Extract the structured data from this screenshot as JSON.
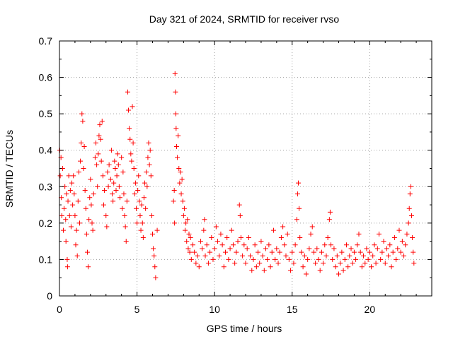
{
  "chart_data": {
    "type": "scatter",
    "title": "Day 321 of 2024, SRMTID for receiver rvso",
    "xlabel": "GPS time / hours",
    "ylabel": "SRMTID / TECUs",
    "xlim": [
      0,
      24
    ],
    "ylim": [
      0,
      0.7
    ],
    "grid": true,
    "xticks": [
      0,
      5,
      10,
      15,
      20
    ],
    "xtick_labels": [
      "0",
      "5",
      "10",
      "15",
      "20"
    ],
    "yticks": [
      0,
      0.1,
      0.2,
      0.3,
      0.4,
      0.5,
      0.6,
      0.7
    ],
    "ytick_labels": [
      "0",
      "0.1",
      "0.2",
      "0.3",
      "0.4",
      "0.5",
      "0.6",
      "0.7"
    ],
    "marker": "plus",
    "series": [
      {
        "name": "SRMTID",
        "color": "#ff0000",
        "points": [
          [
            0.02,
            0.4
          ],
          [
            0.05,
            0.33
          ],
          [
            0.1,
            0.38
          ],
          [
            0.12,
            0.27
          ],
          [
            0.15,
            0.22
          ],
          [
            0.2,
            0.35
          ],
          [
            0.25,
            0.18
          ],
          [
            0.3,
            0.24
          ],
          [
            0.35,
            0.3
          ],
          [
            0.4,
            0.21
          ],
          [
            0.42,
            0.15
          ],
          [
            0.45,
            0.28
          ],
          [
            0.5,
            0.1
          ],
          [
            0.52,
            0.08
          ],
          [
            0.55,
            0.26
          ],
          [
            0.6,
            0.33
          ],
          [
            0.65,
            0.22
          ],
          [
            0.7,
            0.29
          ],
          [
            0.75,
            0.19
          ],
          [
            0.8,
            0.31
          ],
          [
            0.85,
            0.25
          ],
          [
            0.9,
            0.33
          ],
          [
            0.95,
            0.28
          ],
          [
            1.0,
            0.22
          ],
          [
            1.05,
            0.14
          ],
          [
            1.1,
            0.18
          ],
          [
            1.15,
            0.11
          ],
          [
            1.2,
            0.26
          ],
          [
            1.25,
            0.34
          ],
          [
            1.3,
            0.2
          ],
          [
            1.35,
            0.37
          ],
          [
            1.4,
            0.42
          ],
          [
            1.45,
            0.5
          ],
          [
            1.5,
            0.48
          ],
          [
            1.55,
            0.35
          ],
          [
            1.6,
            0.41
          ],
          [
            1.65,
            0.29
          ],
          [
            1.7,
            0.24
          ],
          [
            1.75,
            0.17
          ],
          [
            1.8,
            0.12
          ],
          [
            1.85,
            0.08
          ],
          [
            1.9,
            0.21
          ],
          [
            1.95,
            0.27
          ],
          [
            2.0,
            0.32
          ],
          [
            2.05,
            0.25
          ],
          [
            2.1,
            0.2
          ],
          [
            2.15,
            0.18
          ],
          [
            2.2,
            0.28
          ],
          [
            2.3,
            0.38
          ],
          [
            2.35,
            0.42
          ],
          [
            2.4,
            0.36
          ],
          [
            2.45,
            0.3
          ],
          [
            2.5,
            0.39
          ],
          [
            2.55,
            0.44
          ],
          [
            2.6,
            0.47
          ],
          [
            2.65,
            0.43
          ],
          [
            2.7,
            0.37
          ],
          [
            2.75,
            0.48
          ],
          [
            2.8,
            0.33
          ],
          [
            2.85,
            0.25
          ],
          [
            2.9,
            0.29
          ],
          [
            3.0,
            0.22
          ],
          [
            3.05,
            0.19
          ],
          [
            3.1,
            0.34
          ],
          [
            3.15,
            0.3
          ],
          [
            3.2,
            0.36
          ],
          [
            3.3,
            0.32
          ],
          [
            3.35,
            0.4
          ],
          [
            3.4,
            0.28
          ],
          [
            3.45,
            0.26
          ],
          [
            3.5,
            0.31
          ],
          [
            3.55,
            0.37
          ],
          [
            3.6,
            0.35
          ],
          [
            3.65,
            0.29
          ],
          [
            3.7,
            0.33
          ],
          [
            3.75,
            0.39
          ],
          [
            3.8,
            0.36
          ],
          [
            3.85,
            0.3
          ],
          [
            3.9,
            0.27
          ],
          [
            4.0,
            0.38
          ],
          [
            4.05,
            0.24
          ],
          [
            4.1,
            0.34
          ],
          [
            4.15,
            0.28
          ],
          [
            4.2,
            0.22
          ],
          [
            4.25,
            0.19
          ],
          [
            4.3,
            0.15
          ],
          [
            4.35,
            0.26
          ],
          [
            4.4,
            0.56
          ],
          [
            4.45,
            0.51
          ],
          [
            4.5,
            0.46
          ],
          [
            4.55,
            0.43
          ],
          [
            4.6,
            0.39
          ],
          [
            4.65,
            0.37
          ],
          [
            4.7,
            0.52
          ],
          [
            4.75,
            0.42
          ],
          [
            4.8,
            0.35
          ],
          [
            4.85,
            0.28
          ],
          [
            4.9,
            0.31
          ],
          [
            4.95,
            0.24
          ],
          [
            5.0,
            0.2
          ],
          [
            5.05,
            0.29
          ],
          [
            5.1,
            0.33
          ],
          [
            5.15,
            0.26
          ],
          [
            5.2,
            0.22
          ],
          [
            5.25,
            0.18
          ],
          [
            5.3,
            0.25
          ],
          [
            5.35,
            0.2
          ],
          [
            5.4,
            0.16
          ],
          [
            5.45,
            0.27
          ],
          [
            5.5,
            0.31
          ],
          [
            5.55,
            0.24
          ],
          [
            5.6,
            0.34
          ],
          [
            5.65,
            0.3
          ],
          [
            5.7,
            0.38
          ],
          [
            5.75,
            0.42
          ],
          [
            5.8,
            0.36
          ],
          [
            5.85,
            0.4
          ],
          [
            5.9,
            0.33
          ],
          [
            5.95,
            0.22
          ],
          [
            6.0,
            0.17
          ],
          [
            6.05,
            0.13
          ],
          [
            6.1,
            0.11
          ],
          [
            6.15,
            0.08
          ],
          [
            6.2,
            0.05
          ],
          [
            6.3,
            0.18
          ],
          [
            7.35,
            0.26
          ],
          [
            7.4,
            0.29
          ],
          [
            7.42,
            0.2
          ],
          [
            7.45,
            0.61
          ],
          [
            7.48,
            0.56
          ],
          [
            7.5,
            0.5
          ],
          [
            7.52,
            0.46
          ],
          [
            7.55,
            0.41
          ],
          [
            7.6,
            0.38
          ],
          [
            7.65,
            0.44
          ],
          [
            7.7,
            0.35
          ],
          [
            7.75,
            0.31
          ],
          [
            7.8,
            0.34
          ],
          [
            7.85,
            0.28
          ],
          [
            7.9,
            0.32
          ],
          [
            7.95,
            0.26
          ],
          [
            8.0,
            0.22
          ],
          [
            8.05,
            0.24
          ],
          [
            8.1,
            0.18
          ],
          [
            8.15,
            0.2
          ],
          [
            8.2,
            0.15
          ],
          [
            8.25,
            0.21
          ],
          [
            8.3,
            0.13
          ],
          [
            8.35,
            0.17
          ],
          [
            8.4,
            0.12
          ],
          [
            8.45,
            0.16
          ],
          [
            8.5,
            0.1
          ],
          [
            8.6,
            0.14
          ],
          [
            8.7,
            0.12
          ],
          [
            8.8,
            0.09
          ],
          [
            8.9,
            0.11
          ],
          [
            9.0,
            0.08
          ],
          [
            9.1,
            0.15
          ],
          [
            9.2,
            0.13
          ],
          [
            9.3,
            0.18
          ],
          [
            9.35,
            0.21
          ],
          [
            9.4,
            0.11
          ],
          [
            9.5,
            0.14
          ],
          [
            9.6,
            0.09
          ],
          [
            9.7,
            0.12
          ],
          [
            9.8,
            0.16
          ],
          [
            9.9,
            0.1
          ],
          [
            10.0,
            0.13
          ],
          [
            10.1,
            0.19
          ],
          [
            10.2,
            0.15
          ],
          [
            10.3,
            0.11
          ],
          [
            10.4,
            0.17
          ],
          [
            10.5,
            0.14
          ],
          [
            10.6,
            0.08
          ],
          [
            10.7,
            0.12
          ],
          [
            10.8,
            0.16
          ],
          [
            10.9,
            0.1
          ],
          [
            11.0,
            0.13
          ],
          [
            11.1,
            0.18
          ],
          [
            11.2,
            0.14
          ],
          [
            11.3,
            0.09
          ],
          [
            11.4,
            0.12
          ],
          [
            11.5,
            0.15
          ],
          [
            11.6,
            0.25
          ],
          [
            11.65,
            0.22
          ],
          [
            11.7,
            0.16
          ],
          [
            11.8,
            0.11
          ],
          [
            11.9,
            0.14
          ],
          [
            12.0,
            0.09
          ],
          [
            12.1,
            0.13
          ],
          [
            12.2,
            0.16
          ],
          [
            12.3,
            0.11
          ],
          [
            12.4,
            0.07
          ],
          [
            12.5,
            0.1
          ],
          [
            12.6,
            0.14
          ],
          [
            12.7,
            0.08
          ],
          [
            12.8,
            0.12
          ],
          [
            12.9,
            0.09
          ],
          [
            13.0,
            0.15
          ],
          [
            13.1,
            0.11
          ],
          [
            13.2,
            0.07
          ],
          [
            13.3,
            0.13
          ],
          [
            13.4,
            0.1
          ],
          [
            13.5,
            0.14
          ],
          [
            13.6,
            0.08
          ],
          [
            13.7,
            0.12
          ],
          [
            13.8,
            0.18
          ],
          [
            13.9,
            0.1
          ],
          [
            14.0,
            0.13
          ],
          [
            14.1,
            0.09
          ],
          [
            14.2,
            0.12
          ],
          [
            14.3,
            0.16
          ],
          [
            14.4,
            0.19
          ],
          [
            14.5,
            0.14
          ],
          [
            14.6,
            0.11
          ],
          [
            14.7,
            0.17
          ],
          [
            14.8,
            0.1
          ],
          [
            14.9,
            0.07
          ],
          [
            15.0,
            0.12
          ],
          [
            15.1,
            0.09
          ],
          [
            15.2,
            0.14
          ],
          [
            15.3,
            0.21
          ],
          [
            15.35,
            0.28
          ],
          [
            15.4,
            0.31
          ],
          [
            15.45,
            0.24
          ],
          [
            15.5,
            0.16
          ],
          [
            15.6,
            0.12
          ],
          [
            15.7,
            0.08
          ],
          [
            15.8,
            0.11
          ],
          [
            15.9,
            0.06
          ],
          [
            16.0,
            0.1
          ],
          [
            16.1,
            0.13
          ],
          [
            16.2,
            0.17
          ],
          [
            16.3,
            0.19
          ],
          [
            16.4,
            0.12
          ],
          [
            16.5,
            0.09
          ],
          [
            16.6,
            0.13
          ],
          [
            16.7,
            0.1
          ],
          [
            16.8,
            0.07
          ],
          [
            16.9,
            0.12
          ],
          [
            17.0,
            0.09
          ],
          [
            17.1,
            0.14
          ],
          [
            17.2,
            0.11
          ],
          [
            17.3,
            0.16
          ],
          [
            17.4,
            0.21
          ],
          [
            17.45,
            0.23
          ],
          [
            17.5,
            0.14
          ],
          [
            17.6,
            0.1
          ],
          [
            17.7,
            0.13
          ],
          [
            17.8,
            0.08
          ],
          [
            17.9,
            0.11
          ],
          [
            18.0,
            0.06
          ],
          [
            18.1,
            0.09
          ],
          [
            18.2,
            0.12
          ],
          [
            18.3,
            0.07
          ],
          [
            18.4,
            0.1
          ],
          [
            18.5,
            0.14
          ],
          [
            18.6,
            0.08
          ],
          [
            18.7,
            0.11
          ],
          [
            18.8,
            0.13
          ],
          [
            18.9,
            0.09
          ],
          [
            19.0,
            0.12
          ],
          [
            19.1,
            0.1
          ],
          [
            19.2,
            0.14
          ],
          [
            19.3,
            0.17
          ],
          [
            19.4,
            0.12
          ],
          [
            19.5,
            0.08
          ],
          [
            19.6,
            0.11
          ],
          [
            19.7,
            0.09
          ],
          [
            19.8,
            0.13
          ],
          [
            19.9,
            0.1
          ],
          [
            20.0,
            0.12
          ],
          [
            20.1,
            0.08
          ],
          [
            20.2,
            0.11
          ],
          [
            20.3,
            0.14
          ],
          [
            20.4,
            0.09
          ],
          [
            20.5,
            0.13
          ],
          [
            20.6,
            0.17
          ],
          [
            20.7,
            0.1
          ],
          [
            20.8,
            0.12
          ],
          [
            20.9,
            0.15
          ],
          [
            21.0,
            0.09
          ],
          [
            21.1,
            0.13
          ],
          [
            21.2,
            0.11
          ],
          [
            21.3,
            0.14
          ],
          [
            21.4,
            0.08
          ],
          [
            21.5,
            0.12
          ],
          [
            21.6,
            0.16
          ],
          [
            21.7,
            0.1
          ],
          [
            21.8,
            0.13
          ],
          [
            21.9,
            0.18
          ],
          [
            22.0,
            0.12
          ],
          [
            22.1,
            0.15
          ],
          [
            22.2,
            0.11
          ],
          [
            22.3,
            0.14
          ],
          [
            22.4,
            0.17
          ],
          [
            22.5,
            0.2
          ],
          [
            22.55,
            0.24
          ],
          [
            22.6,
            0.28
          ],
          [
            22.65,
            0.3
          ],
          [
            22.7,
            0.22
          ],
          [
            22.75,
            0.16
          ],
          [
            22.8,
            0.12
          ],
          [
            22.85,
            0.09
          ]
        ]
      }
    ]
  }
}
